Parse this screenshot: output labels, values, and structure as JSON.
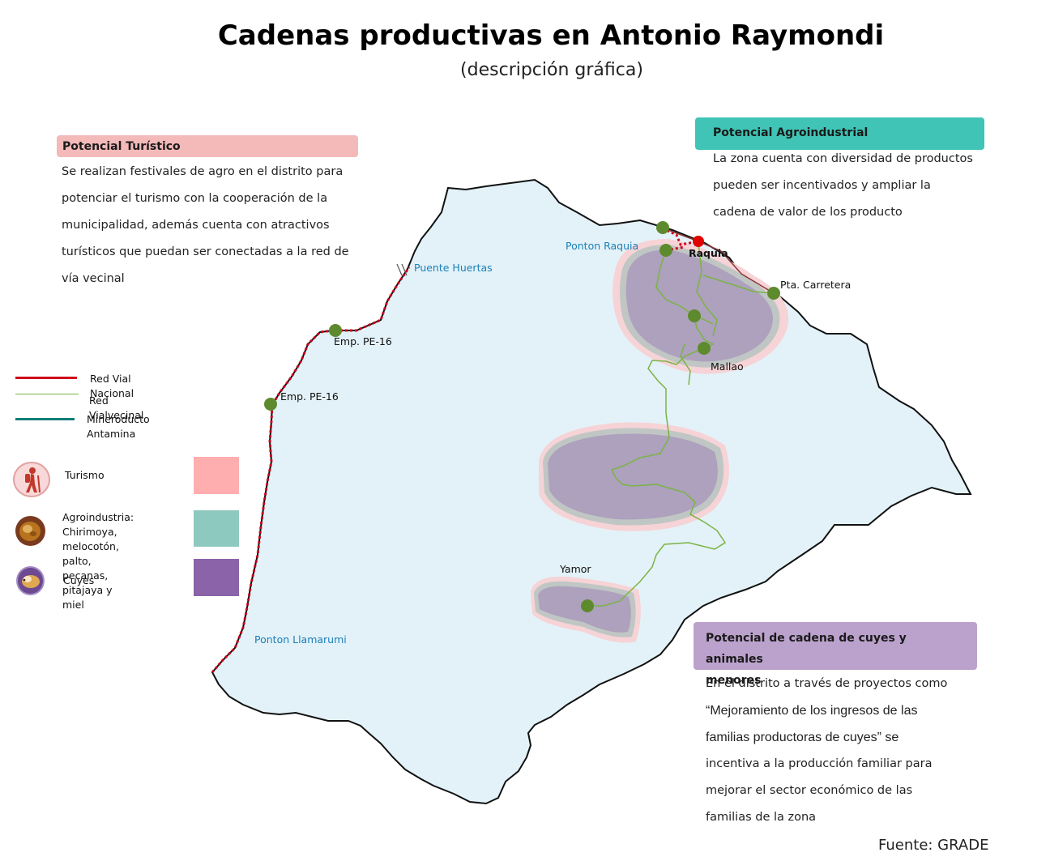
{
  "title": "Cadenas productivas en Antonio Raymondi",
  "subtitle": "(descripción gráfica)",
  "panels": {
    "turistico": {
      "heading": "Potencial Turístico",
      "lines": [
        "Se realizan festivales de agro en el distrito para",
        "potenciar el turismo con la cooperación de la",
        "municipalidad, además cuenta con atractivos",
        "turísticos que puedan ser conectadas a la red de",
        "vía vecinal"
      ]
    },
    "agroindustrial": {
      "heading": "Potencial Agroindustrial",
      "lines": [
        "La zona cuenta con diversidad de productos",
        "pueden ser incentivados y ampliar la",
        "cadena de valor de los producto"
      ]
    },
    "cuyes": {
      "heading_line1": "Potencial de cadena de cuyes y animales",
      "heading_line2": "menores",
      "lines": [
        "En el distrito a través de proyectos como",
        "“Mejoramiento de los ingresos de las",
        "familias productoras de cuyes” se",
        "incentiva a la producción familiar para",
        "mejorar el sector económico de las",
        "familias de la zona"
      ]
    }
  },
  "legend": {
    "roads": [
      {
        "label": "Red Vial Nacional",
        "color": "#d0021b"
      },
      {
        "label": "Red Vialvecinal",
        "color": "#7bb345"
      },
      {
        "label": "Mineroducto Antamina",
        "color": "#0e7f78"
      }
    ],
    "zones": [
      {
        "label_lines": [
          "Turismo"
        ],
        "color": "#ffaeb0",
        "icon": "hiker-icon"
      },
      {
        "label_lines": [
          "Agroindustria: Chirimoya,",
          "melocotón, palto,",
          "pecanas, pitajaya y miel"
        ],
        "color": "#8ec9bf",
        "icon": "produce-icon"
      },
      {
        "label_lines": [
          "Cuyes"
        ],
        "color": "#8a63a8",
        "icon": "guinea-pig-icon"
      }
    ]
  },
  "map": {
    "district_fill": "#e3f2f8",
    "zone_fill": "#b1a6bd",
    "node_color": "#5e8a2e",
    "capital_color": "#e00000",
    "places": {
      "raquia": "Raquia",
      "ponton_raquia": "Ponton Raquia",
      "puente_huertas": "Puente Huertas",
      "pta_carretera": "Pta. Carretera",
      "mallao": "Mallao",
      "emp1": "Emp. PE-16",
      "emp2": "Emp. PE-16",
      "yamor": "Yamor",
      "ponton_llamarumi": "Ponton Llamarumi"
    }
  },
  "source": "Fuente: GRADE"
}
